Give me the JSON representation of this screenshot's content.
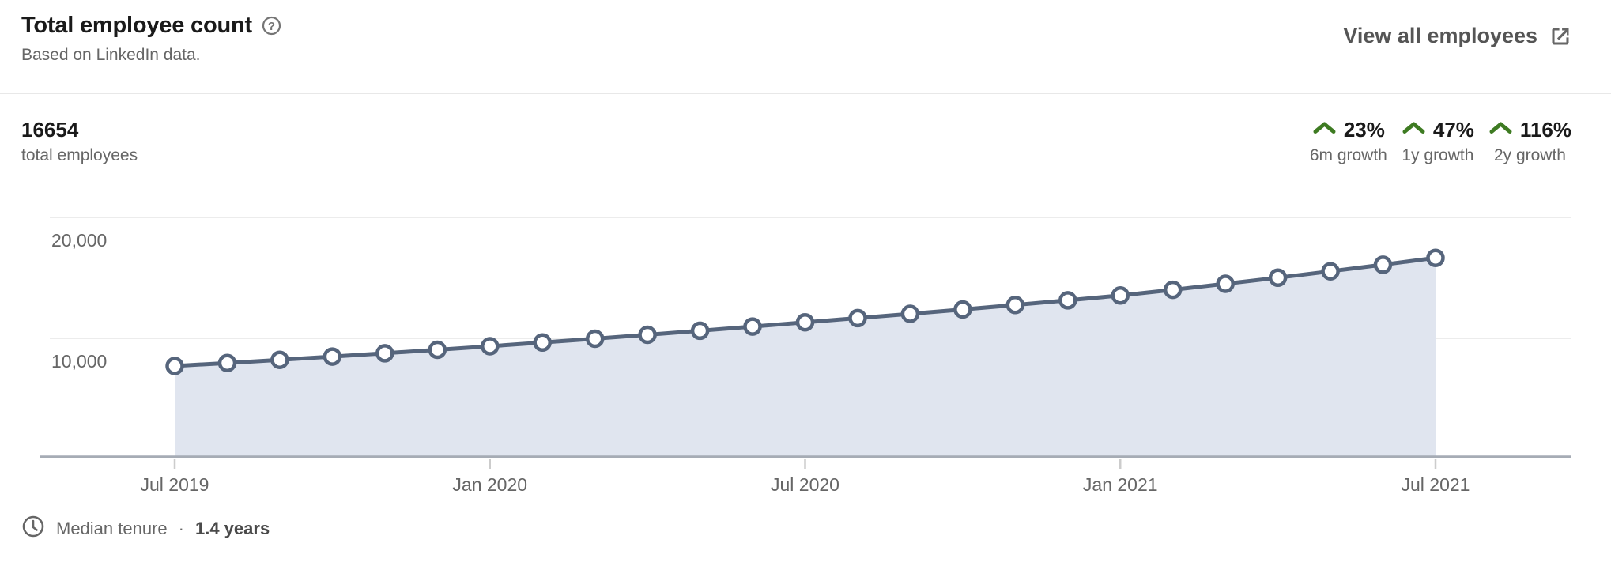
{
  "header": {
    "title": "Total employee count",
    "subtitle": "Based on LinkedIn data.",
    "help_icon": "question-mark-circle-icon",
    "view_all_label": "View all employees",
    "view_all_icon": "external-link-icon",
    "text_color": "#1a1a1a",
    "muted_color": "#666666"
  },
  "summary": {
    "total_value": "16654",
    "total_label": "total employees",
    "growth_color": "#3e7b22",
    "growth_stats": [
      {
        "value": "23%",
        "label": "6m growth",
        "direction": "up"
      },
      {
        "value": "47%",
        "label": "1y growth",
        "direction": "up"
      },
      {
        "value": "116%",
        "label": "2y growth",
        "direction": "up"
      }
    ]
  },
  "footer": {
    "clock_icon": "clock-icon",
    "median_tenure_label": "Median tenure",
    "separator": "·",
    "median_tenure_value": "1.4 years"
  },
  "chart_data": {
    "type": "area",
    "title": "Total employee count over time",
    "x": [
      "Jul 2019",
      "Aug 2019",
      "Sep 2019",
      "Oct 2019",
      "Nov 2019",
      "Dec 2019",
      "Jan 2020",
      "Feb 2020",
      "Mar 2020",
      "Apr 2020",
      "May 2020",
      "Jun 2020",
      "Jul 2020",
      "Aug 2020",
      "Sep 2020",
      "Oct 2020",
      "Nov 2020",
      "Dec 2020",
      "Jan 2021",
      "Feb 2021",
      "Mar 2021",
      "Apr 2021",
      "May 2021",
      "Jun 2021",
      "Jul 2021"
    ],
    "values": [
      7710,
      7962,
      8221,
      8489,
      8766,
      9052,
      9347,
      9652,
      9967,
      10292,
      10628,
      10975,
      11330,
      11672,
      12024,
      12387,
      12761,
      13146,
      13540,
      14015,
      14507,
      15016,
      15543,
      16088,
      16654
    ],
    "x_tick_labels": [
      "Jul 2019",
      "Jan 2020",
      "Jul 2020",
      "Jan 2021",
      "Jul 2021"
    ],
    "y_tick_values": [
      20000,
      10000
    ],
    "y_tick_labels": [
      "20,000",
      "10,000"
    ],
    "ylim": [
      0,
      24000
    ],
    "grid": "horizontal",
    "legend": "none",
    "line_color": "#56657c",
    "fill_color": "#e0e5ef",
    "marker_style": "white-circle",
    "gridline_color": "#e5e5e5",
    "axis_color": "#a6acb5",
    "tick_color": "#cccccc",
    "label_color": "#666666"
  }
}
